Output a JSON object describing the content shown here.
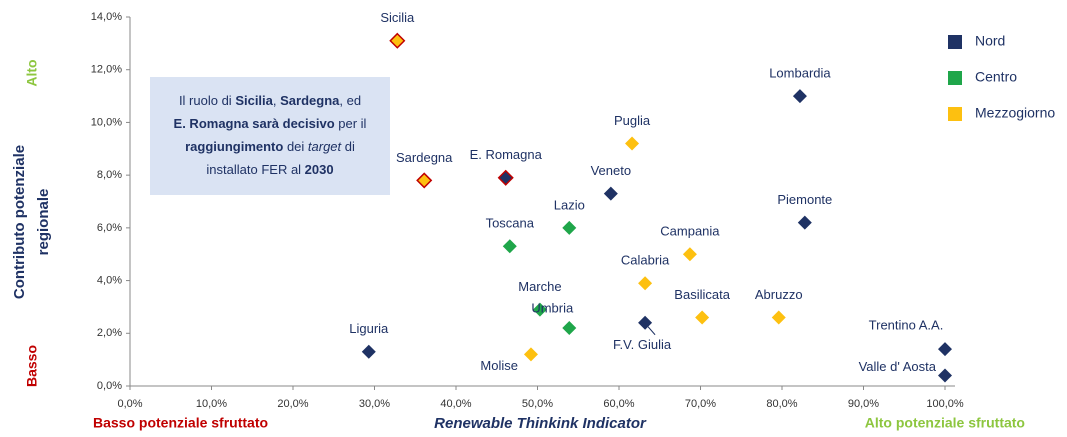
{
  "chart_data": {
    "type": "scatter",
    "xlabel": "Renewable Thinkink Indicator",
    "ylabel": [
      "Contributo potenziale",
      "regionale"
    ],
    "y_high_label": "Alto",
    "y_low_label": "Basso",
    "x_low_label": "Basso potenziale sfruttato",
    "x_high_label": "Alto potenziale sfruttato",
    "xlim": [
      0,
      100
    ],
    "ylim": [
      0,
      14
    ],
    "xticks": [
      {
        "value": 0,
        "label": "0,0%"
      },
      {
        "value": 10,
        "label": "10,0%"
      },
      {
        "value": 20,
        "label": "20,0%"
      },
      {
        "value": 30,
        "label": "30,0%"
      },
      {
        "value": 40,
        "label": "40,0%"
      },
      {
        "value": 50,
        "label": "50,0%"
      },
      {
        "value": 60,
        "label": "60,0%"
      },
      {
        "value": 70,
        "label": "70,0%"
      },
      {
        "value": 80,
        "label": "80,0%"
      },
      {
        "value": 90,
        "label": "90,0%"
      },
      {
        "value": 100,
        "label": "100,0%"
      }
    ],
    "yticks": [
      {
        "value": 0,
        "label": "0,0%"
      },
      {
        "value": 2,
        "label": "2,0%"
      },
      {
        "value": 4,
        "label": "4,0%"
      },
      {
        "value": 6,
        "label": "6,0%"
      },
      {
        "value": 8,
        "label": "8,0%"
      },
      {
        "value": 10,
        "label": "10,0%"
      },
      {
        "value": 12,
        "label": "12,0%"
      },
      {
        "value": 14,
        "label": "14,0%"
      }
    ],
    "grid": false,
    "legend": "upper right",
    "highlight_color": "#c00000",
    "series": [
      {
        "name": "Nord",
        "color": "#1f3264",
        "labels": [
          "Lombardia",
          "Veneto",
          "Piemonte",
          "E. Romagna",
          "F.V. Giulia",
          "Liguria",
          "Trentino A.A.",
          "Valle d' Aosta"
        ],
        "x": [
          82.2,
          59.0,
          82.8,
          46.1,
          63.2,
          29.3,
          100,
          100
        ],
        "values": [
          11.0,
          7.3,
          6.2,
          7.9,
          2.4,
          1.3,
          1.4,
          0.4
        ],
        "highlighted": [
          false,
          false,
          false,
          true,
          false,
          false,
          false,
          false
        ]
      },
      {
        "name": "Centro",
        "color": "#1fa64a",
        "labels": [
          "Toscana",
          "Lazio",
          "Marche",
          "Umbria"
        ],
        "x": [
          46.6,
          53.9,
          50.3,
          53.9
        ],
        "values": [
          5.3,
          6.0,
          2.9,
          2.2
        ],
        "highlighted": [
          false,
          false,
          false,
          false
        ]
      },
      {
        "name": "Mezzogiorno",
        "color": "#fdc010",
        "labels": [
          "Sicilia",
          "Sardegna",
          "Puglia",
          "Campania",
          "Calabria",
          "Basilicata",
          "Abruzzo",
          "Molise"
        ],
        "x": [
          32.8,
          36.1,
          61.6,
          68.7,
          63.2,
          70.2,
          79.6,
          49.2
        ],
        "values": [
          13.1,
          7.8,
          9.2,
          5.0,
          3.9,
          2.6,
          2.6,
          1.2
        ],
        "highlighted": [
          true,
          true,
          false,
          false,
          false,
          false,
          false,
          false
        ]
      }
    ],
    "annotation": {
      "lines": [
        [
          {
            "text": "Il ruolo di ",
            "style": "normal"
          },
          {
            "text": "Sicilia",
            "style": "bold"
          },
          {
            "text": ", ",
            "style": "normal"
          },
          {
            "text": "Sardegna",
            "style": "bold"
          },
          {
            "text": ", ed",
            "style": "normal"
          }
        ],
        [
          {
            "text": "E. Romagna sarà decisivo",
            "style": "bold"
          },
          {
            "text": " per il",
            "style": "normal"
          }
        ],
        [
          {
            "text": "raggiungimento",
            "style": "bold"
          },
          {
            "text": " dei ",
            "style": "normal"
          },
          {
            "text": "target",
            "style": "italic"
          },
          {
            "text": " di",
            "style": "normal"
          }
        ],
        [
          {
            "text": "installato FER al ",
            "style": "normal"
          },
          {
            "text": "2030",
            "style": "bold"
          }
        ]
      ]
    }
  }
}
